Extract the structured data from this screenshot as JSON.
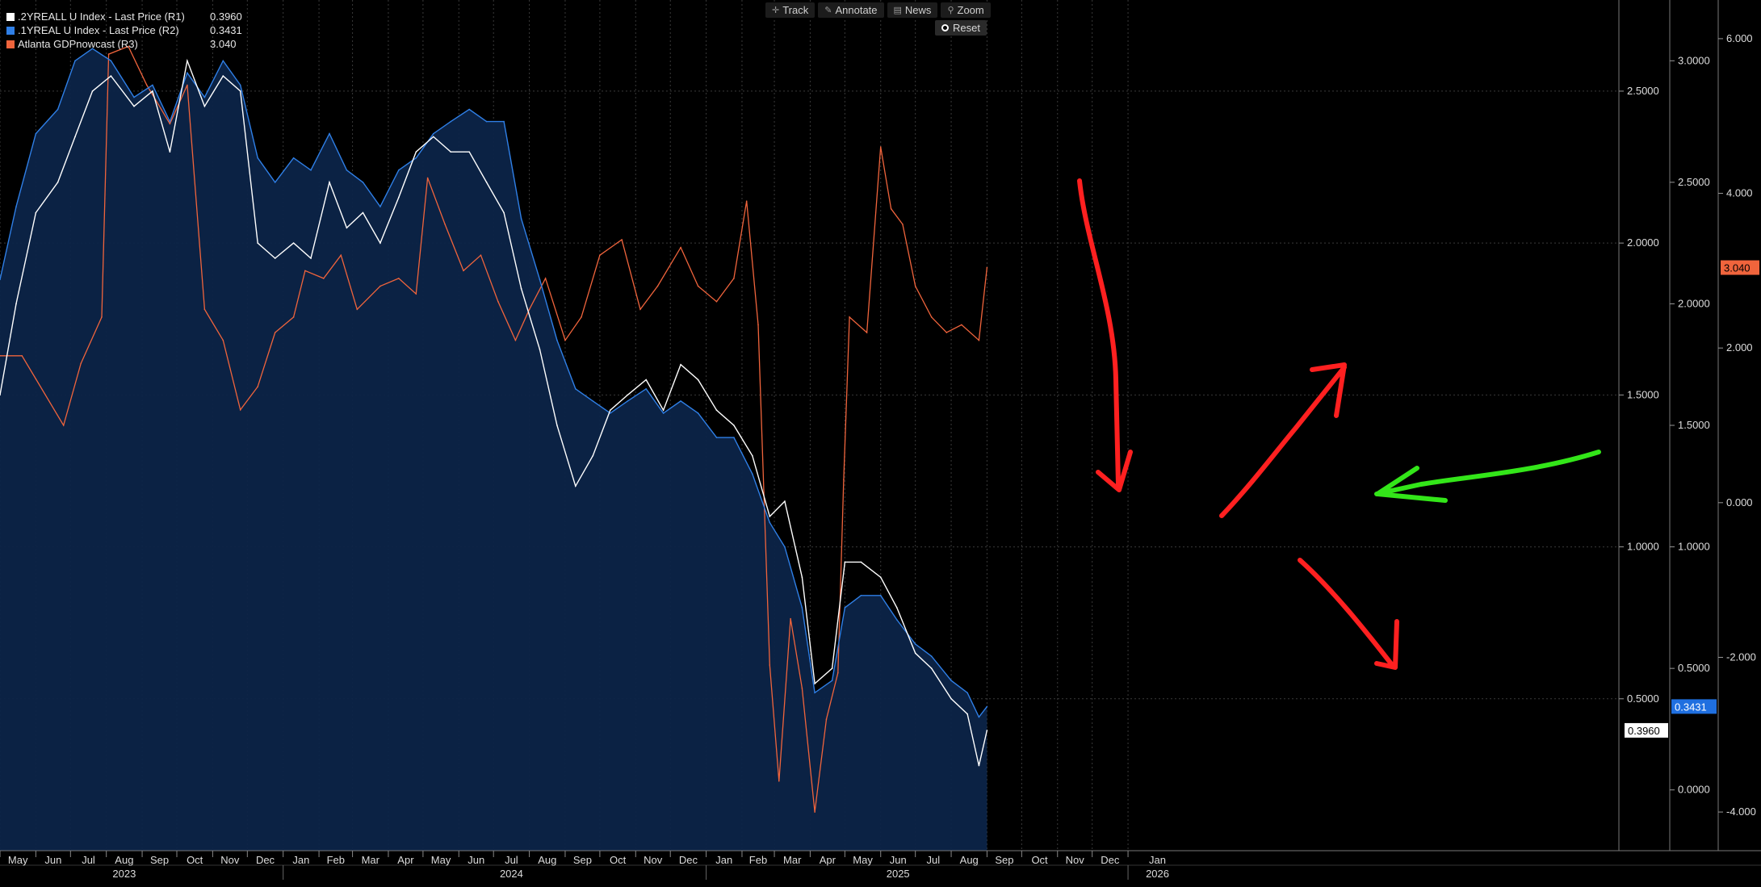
{
  "legend": [
    {
      "name": ".2YREALL U Index - Last Price (R1)",
      "value": "0.3960",
      "color": "#ffffff"
    },
    {
      "name": ".1YREAL U Index - Last Price (R2)",
      "value": "0.3431",
      "color": "#2f7fe6"
    },
    {
      "name": "Atlanta GDPnowcast (R3)",
      "value": "3.040",
      "color": "#f0643c"
    }
  ],
  "toolbar": {
    "track": "Track",
    "track_icon": "crosshair-icon",
    "annotate": "Annotate",
    "annotate_icon": "pencil-icon",
    "news": "News",
    "news_icon": "newspaper-icon",
    "zoom": "Zoom",
    "zoom_icon": "magnifier-icon",
    "reset": "Reset",
    "reset_icon": "radio-icon"
  },
  "last_value_tags": {
    "r1": {
      "label": "0.3960",
      "color": "#ffffff"
    },
    "r2": {
      "label": "0.3431",
      "color": "#2f7fe6"
    },
    "r3": {
      "label": "3.040",
      "color": "#f0643c"
    }
  },
  "chart_data": {
    "type": "line",
    "x_axis": {
      "months": [
        "May",
        "Jun",
        "Jul",
        "Aug",
        "Sep",
        "Oct",
        "Nov",
        "Dec",
        "Jan",
        "Feb",
        "Mar",
        "Apr",
        "May",
        "Jun",
        "Jul",
        "Aug",
        "Sep",
        "Oct",
        "Nov",
        "Dec",
        "Jan",
        "Feb",
        "Mar",
        "Apr",
        "May",
        "Jun",
        "Jul",
        "Aug",
        "Sep",
        "Oct",
        "Nov",
        "Dec",
        "Jan"
      ],
      "years": [
        {
          "label": "2023",
          "month": "Aug 2023"
        },
        {
          "label": "2024",
          "month": "Jul 2024"
        },
        {
          "label": "2025",
          "month": "Jun 2025"
        },
        {
          "label": "2026",
          "month": "Jan 2026"
        }
      ],
      "range": [
        "2023-05-01",
        "2026-01-31"
      ],
      "grid": true
    },
    "axes": {
      "R1": {
        "ticks": [
          "0.5000",
          "1.0000",
          "1.5000",
          "2.0000",
          "2.5000"
        ],
        "range": [
          0.0,
          2.8
        ]
      },
      "R2": {
        "ticks": [
          "0.0000",
          "0.5000",
          "1.0000",
          "1.5000",
          "2.0000",
          "2.5000",
          "3.0000"
        ],
        "range": [
          -0.25,
          3.25
        ]
      },
      "R3": {
        "ticks": [
          "-4.000",
          "-2.000",
          "0.000",
          "2.000",
          "4.000",
          "6.000"
        ],
        "range": [
          -4.5,
          6.5
        ]
      }
    },
    "series": [
      {
        "name": ".2YREALL U Index - Last Price (R1)",
        "axis": "R1",
        "color": "#ffffff",
        "last": 0.396,
        "points": [
          [
            "2023-05-01",
            1.5
          ],
          [
            "2023-05-15",
            1.8
          ],
          [
            "2023-06-01",
            2.1
          ],
          [
            "2023-06-20",
            2.2
          ],
          [
            "2023-07-05",
            2.35
          ],
          [
            "2023-07-20",
            2.5
          ],
          [
            "2023-08-05",
            2.55
          ],
          [
            "2023-08-25",
            2.45
          ],
          [
            "2023-09-10",
            2.5
          ],
          [
            "2023-09-25",
            2.3
          ],
          [
            "2023-10-10",
            2.6
          ],
          [
            "2023-10-25",
            2.45
          ],
          [
            "2023-11-10",
            2.55
          ],
          [
            "2023-11-25",
            2.5
          ],
          [
            "2023-12-10",
            2.0
          ],
          [
            "2023-12-25",
            1.95
          ],
          [
            "2024-01-10",
            2.0
          ],
          [
            "2024-01-25",
            1.95
          ],
          [
            "2024-02-10",
            2.2
          ],
          [
            "2024-02-25",
            2.05
          ],
          [
            "2024-03-10",
            2.1
          ],
          [
            "2024-03-25",
            2.0
          ],
          [
            "2024-04-10",
            2.15
          ],
          [
            "2024-04-25",
            2.3
          ],
          [
            "2024-05-10",
            2.35
          ],
          [
            "2024-05-25",
            2.3
          ],
          [
            "2024-06-10",
            2.3
          ],
          [
            "2024-06-25",
            2.2
          ],
          [
            "2024-07-10",
            2.1
          ],
          [
            "2024-07-25",
            1.85
          ],
          [
            "2024-08-10",
            1.65
          ],
          [
            "2024-08-25",
            1.4
          ],
          [
            "2024-09-10",
            1.2
          ],
          [
            "2024-09-25",
            1.3
          ],
          [
            "2024-10-10",
            1.45
          ],
          [
            "2024-10-25",
            1.5
          ],
          [
            "2024-11-10",
            1.55
          ],
          [
            "2024-11-25",
            1.45
          ],
          [
            "2024-12-10",
            1.6
          ],
          [
            "2024-12-25",
            1.55
          ],
          [
            "2025-01-10",
            1.45
          ],
          [
            "2025-01-25",
            1.4
          ],
          [
            "2025-02-10",
            1.3
          ],
          [
            "2025-02-25",
            1.1
          ],
          [
            "2025-03-10",
            1.15
          ],
          [
            "2025-03-25",
            0.9
          ],
          [
            "2025-04-05",
            0.55
          ],
          [
            "2025-04-20",
            0.6
          ],
          [
            "2025-05-01",
            0.95
          ],
          [
            "2025-05-15",
            0.95
          ],
          [
            "2025-06-01",
            0.9
          ],
          [
            "2025-06-15",
            0.8
          ],
          [
            "2025-07-01",
            0.65
          ],
          [
            "2025-07-15",
            0.6
          ],
          [
            "2025-08-01",
            0.5
          ],
          [
            "2025-08-15",
            0.45
          ],
          [
            "2025-08-25",
            0.28
          ],
          [
            "2025-09-01",
            0.396
          ]
        ]
      },
      {
        "name": ".1YREAL U Index - Last Price (R2)",
        "axis": "R2",
        "color": "#2f7fe6",
        "last": 0.3431,
        "area": true,
        "points": [
          [
            "2023-05-01",
            2.1
          ],
          [
            "2023-05-15",
            2.4
          ],
          [
            "2023-06-01",
            2.7
          ],
          [
            "2023-06-20",
            2.8
          ],
          [
            "2023-07-05",
            3.0
          ],
          [
            "2023-07-20",
            3.05
          ],
          [
            "2023-08-05",
            3.0
          ],
          [
            "2023-08-25",
            2.85
          ],
          [
            "2023-09-10",
            2.9
          ],
          [
            "2023-09-25",
            2.75
          ],
          [
            "2023-10-10",
            2.95
          ],
          [
            "2023-10-25",
            2.85
          ],
          [
            "2023-11-10",
            3.0
          ],
          [
            "2023-11-25",
            2.9
          ],
          [
            "2023-12-10",
            2.6
          ],
          [
            "2023-12-25",
            2.5
          ],
          [
            "2024-01-10",
            2.6
          ],
          [
            "2024-01-25",
            2.55
          ],
          [
            "2024-02-10",
            2.7
          ],
          [
            "2024-02-25",
            2.55
          ],
          [
            "2024-03-10",
            2.5
          ],
          [
            "2024-03-25",
            2.4
          ],
          [
            "2024-04-10",
            2.55
          ],
          [
            "2024-04-25",
            2.6
          ],
          [
            "2024-05-10",
            2.7
          ],
          [
            "2024-05-25",
            2.75
          ],
          [
            "2024-06-10",
            2.8
          ],
          [
            "2024-06-25",
            2.75
          ],
          [
            "2024-07-10",
            2.75
          ],
          [
            "2024-07-25",
            2.35
          ],
          [
            "2024-08-10",
            2.1
          ],
          [
            "2024-08-25",
            1.85
          ],
          [
            "2024-09-10",
            1.65
          ],
          [
            "2024-09-25",
            1.6
          ],
          [
            "2024-10-10",
            1.55
          ],
          [
            "2024-10-25",
            1.6
          ],
          [
            "2024-11-10",
            1.65
          ],
          [
            "2024-11-25",
            1.55
          ],
          [
            "2024-12-10",
            1.6
          ],
          [
            "2024-12-25",
            1.55
          ],
          [
            "2025-01-10",
            1.45
          ],
          [
            "2025-01-25",
            1.45
          ],
          [
            "2025-02-10",
            1.3
          ],
          [
            "2025-02-25",
            1.1
          ],
          [
            "2025-03-10",
            1.0
          ],
          [
            "2025-03-25",
            0.75
          ],
          [
            "2025-04-05",
            0.4
          ],
          [
            "2025-04-20",
            0.45
          ],
          [
            "2025-05-01",
            0.75
          ],
          [
            "2025-05-15",
            0.8
          ],
          [
            "2025-06-01",
            0.8
          ],
          [
            "2025-06-15",
            0.7
          ],
          [
            "2025-07-01",
            0.6
          ],
          [
            "2025-07-15",
            0.55
          ],
          [
            "2025-08-01",
            0.45
          ],
          [
            "2025-08-15",
            0.4
          ],
          [
            "2025-08-25",
            0.3
          ],
          [
            "2025-09-01",
            0.3431
          ]
        ]
      },
      {
        "name": "Atlanta GDPnowcast (R3)",
        "axis": "R3",
        "color": "#f0643c",
        "last": 3.04,
        "points": [
          [
            "2023-05-01",
            1.9
          ],
          [
            "2023-05-20",
            1.9
          ],
          [
            "2023-06-01",
            1.6
          ],
          [
            "2023-06-25",
            1.0
          ],
          [
            "2023-07-10",
            1.8
          ],
          [
            "2023-07-28",
            2.4
          ],
          [
            "2023-08-03",
            5.8
          ],
          [
            "2023-08-20",
            5.9
          ],
          [
            "2023-09-05",
            5.4
          ],
          [
            "2023-09-25",
            4.9
          ],
          [
            "2023-10-10",
            5.4
          ],
          [
            "2023-10-25",
            2.5
          ],
          [
            "2023-11-10",
            2.1
          ],
          [
            "2023-11-25",
            1.2
          ],
          [
            "2023-12-10",
            1.5
          ],
          [
            "2023-12-25",
            2.2
          ],
          [
            "2024-01-10",
            2.4
          ],
          [
            "2024-01-20",
            3.0
          ],
          [
            "2024-02-05",
            2.9
          ],
          [
            "2024-02-20",
            3.2
          ],
          [
            "2024-03-05",
            2.5
          ],
          [
            "2024-03-25",
            2.8
          ],
          [
            "2024-04-10",
            2.9
          ],
          [
            "2024-04-25",
            2.7
          ],
          [
            "2024-05-05",
            4.2
          ],
          [
            "2024-05-20",
            3.6
          ],
          [
            "2024-06-05",
            3.0
          ],
          [
            "2024-06-20",
            3.2
          ],
          [
            "2024-07-05",
            2.6
          ],
          [
            "2024-07-20",
            2.1
          ],
          [
            "2024-08-01",
            2.5
          ],
          [
            "2024-08-15",
            2.9
          ],
          [
            "2024-09-01",
            2.1
          ],
          [
            "2024-09-15",
            2.4
          ],
          [
            "2024-10-01",
            3.2
          ],
          [
            "2024-10-20",
            3.4
          ],
          [
            "2024-11-05",
            2.5
          ],
          [
            "2024-11-20",
            2.8
          ],
          [
            "2024-12-10",
            3.3
          ],
          [
            "2024-12-25",
            2.8
          ],
          [
            "2025-01-10",
            2.6
          ],
          [
            "2025-01-25",
            2.9
          ],
          [
            "2025-02-05",
            3.9
          ],
          [
            "2025-02-15",
            2.3
          ],
          [
            "2025-02-25",
            -2.1
          ],
          [
            "2025-03-05",
            -3.6
          ],
          [
            "2025-03-15",
            -1.5
          ],
          [
            "2025-03-25",
            -2.4
          ],
          [
            "2025-04-05",
            -4.0
          ],
          [
            "2025-04-15",
            -2.8
          ],
          [
            "2025-04-25",
            -2.2
          ],
          [
            "2025-04-30",
            0.3
          ],
          [
            "2025-05-05",
            2.4
          ],
          [
            "2025-05-20",
            2.2
          ],
          [
            "2025-06-01",
            4.6
          ],
          [
            "2025-06-10",
            3.8
          ],
          [
            "2025-06-20",
            3.6
          ],
          [
            "2025-07-01",
            2.8
          ],
          [
            "2025-07-15",
            2.4
          ],
          [
            "2025-07-28",
            2.2
          ],
          [
            "2025-08-10",
            2.3
          ],
          [
            "2025-08-25",
            2.1
          ],
          [
            "2025-09-01",
            3.04
          ]
        ]
      }
    ]
  },
  "annotations": [
    {
      "type": "arrow",
      "color": "#ff2020",
      "direction": "down"
    },
    {
      "type": "arrow",
      "color": "#ff2020",
      "direction": "up-right"
    },
    {
      "type": "arrow",
      "color": "#ff2020",
      "direction": "down-right"
    },
    {
      "type": "arrow",
      "color": "#33e619",
      "direction": "left"
    }
  ]
}
